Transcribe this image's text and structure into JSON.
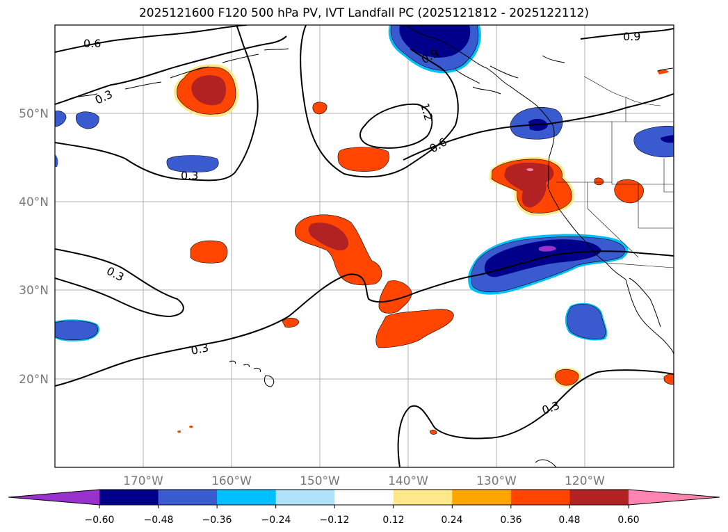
{
  "title": "2025121600 F120 500 hPa PV, IVT Landfall PC (2025121812 - 2025122112)",
  "map": {
    "lon_ticks": [
      "170°W",
      "160°W",
      "150°W",
      "140°W",
      "130°W",
      "120°W"
    ],
    "lat_ticks": [
      "50°N",
      "40°N",
      "30°N",
      "20°N"
    ],
    "contour_labels": [
      "0.6",
      "0.3",
      "0.3",
      "0.3",
      "0.3",
      "0.3",
      "1.2",
      "0.6",
      "0.9",
      "0.9"
    ]
  },
  "colorbar": {
    "ticks": [
      "−0.60",
      "−0.48",
      "−0.36",
      "−0.24",
      "−0.12",
      "0.12",
      "0.24",
      "0.36",
      "0.48",
      "0.60"
    ],
    "colors": [
      "#9932cc",
      "#00008b",
      "#3a5bd0",
      "#00bfff",
      "#b0e0fa",
      "#ffffff",
      "#ffe88a",
      "#ffa500",
      "#ff4500",
      "#b22222",
      "#ff85b0"
    ]
  }
}
